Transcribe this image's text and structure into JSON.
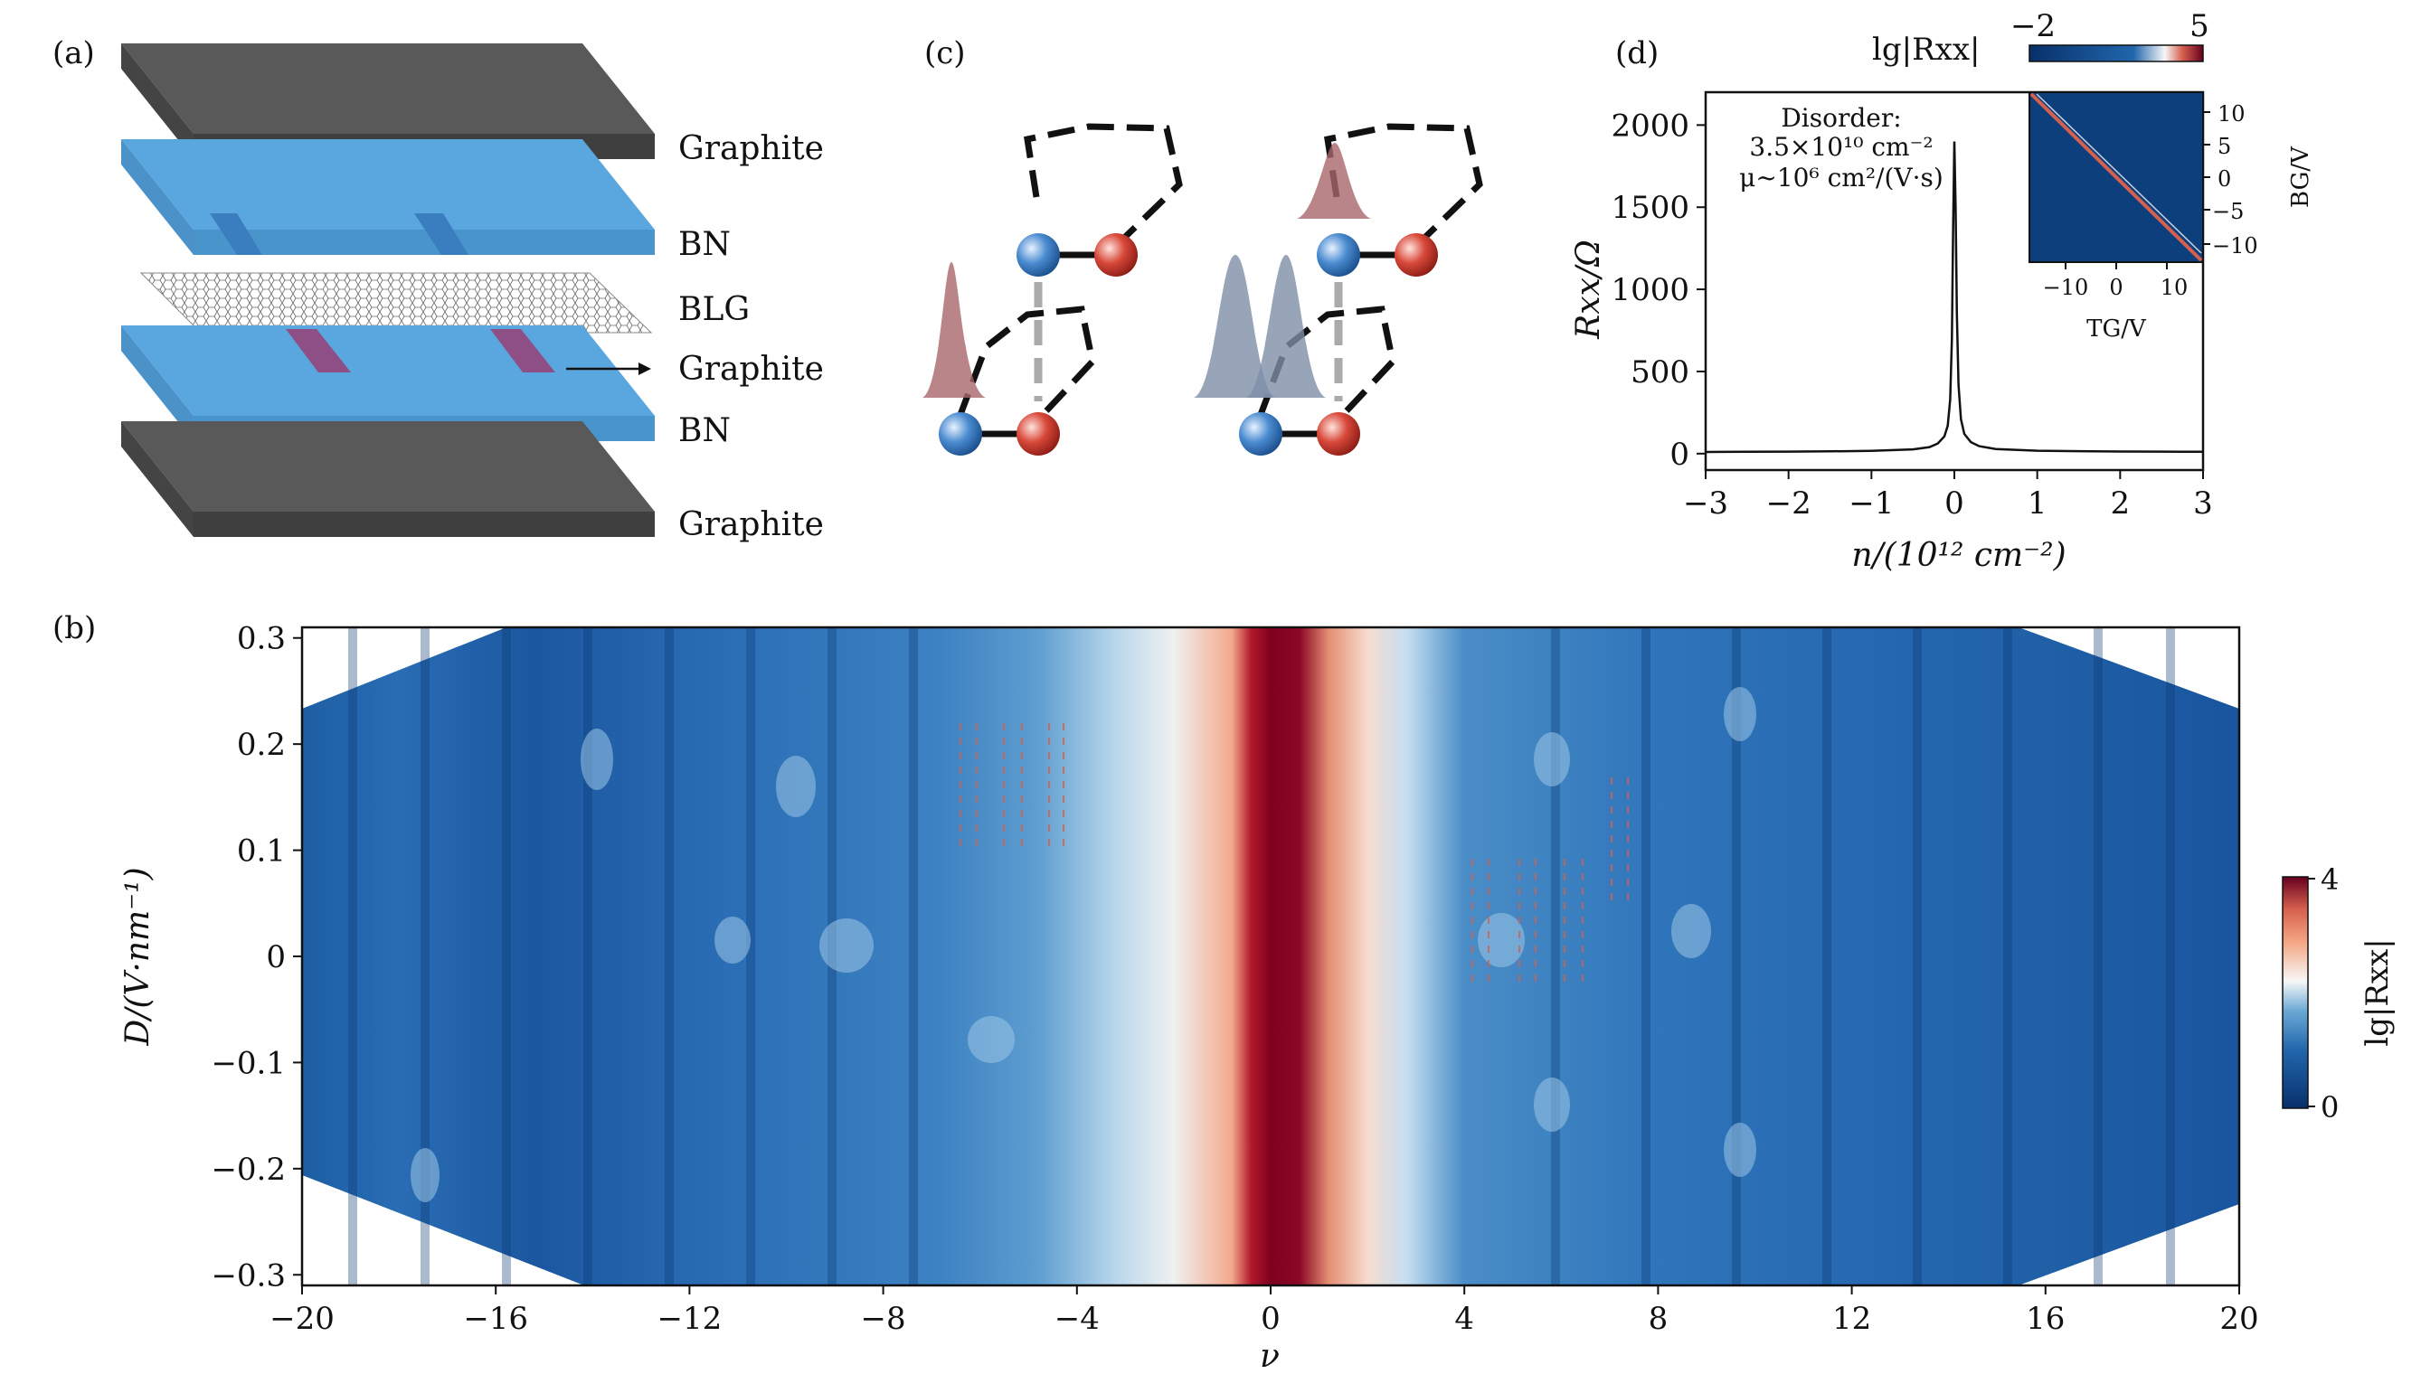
{
  "panels": {
    "a": {
      "label": "(a)",
      "layers": [
        "Graphite",
        "BN",
        "BLG",
        "Graphite",
        "BN",
        "Graphite"
      ],
      "colors": {
        "graphite": "#5a5a5a",
        "bn": "#4f9fdc",
        "blg": "#9a9a9a",
        "contact": "#8e4e86"
      }
    },
    "c": {
      "label": "(c)",
      "colors": {
        "blue_atom": "#3a7cc3",
        "red_atom": "#c23a30",
        "wave_red": "#a9676a",
        "wave_blue": "#7e8ea8"
      }
    },
    "d": {
      "label": "(d)",
      "annotation": {
        "line1": "Disorder:",
        "line2": "3.5×10¹⁰ cm⁻²",
        "line3": "μ~10⁶ cm²/(V·s)"
      },
      "inset": {
        "xlabel": "TG/V",
        "ylabel": "BG/V",
        "xticks": [
          "−10",
          "0",
          "10"
        ],
        "yticks": [
          "10",
          "5",
          "0",
          "−5",
          "−10"
        ],
        "colorbar_label": "lg|Rxx|",
        "colorbar_ticks": [
          "−2",
          "5"
        ]
      }
    },
    "b": {
      "label": "(b)",
      "colorbar_label": "lg|Rxx|",
      "colorbar_ticks": [
        "4",
        "0"
      ]
    }
  },
  "chart_data": [
    {
      "type": "line",
      "panel": "d",
      "title": "",
      "xlabel": "n/(10¹² cm⁻²)",
      "ylabel": "Rxx/Ω",
      "xlim": [
        -3,
        3
      ],
      "ylim": [
        -100,
        2200
      ],
      "xticks": [
        -3,
        -2,
        -1,
        0,
        1,
        2,
        3
      ],
      "xtick_labels": [
        "−3",
        "−2",
        "−1",
        "0",
        "1",
        "2",
        "3"
      ],
      "yticks": [
        0,
        500,
        1000,
        1500,
        2000
      ],
      "ytick_labels": [
        "0",
        "500",
        "1000",
        "1500",
        "2000"
      ],
      "series": [
        {
          "name": "Rxx",
          "x": [
            -3,
            -2.5,
            -2,
            -1.5,
            -1,
            -0.5,
            -0.3,
            -0.2,
            -0.12,
            -0.08,
            -0.05,
            -0.03,
            -0.015,
            0,
            0.015,
            0.03,
            0.05,
            0.08,
            0.12,
            0.2,
            0.3,
            0.5,
            1,
            1.5,
            2,
            2.5,
            3
          ],
          "y": [
            10,
            11,
            12,
            14,
            17,
            26,
            40,
            62,
            105,
            170,
            330,
            700,
            1350,
            1900,
            1500,
            850,
            420,
            210,
            120,
            70,
            45,
            28,
            18,
            15,
            13,
            12,
            11
          ]
        }
      ]
    },
    {
      "type": "heatmap",
      "panel": "b",
      "title": "",
      "xlabel": "ν",
      "ylabel": "D/(V·nm⁻¹)",
      "xlim": [
        -20,
        20
      ],
      "ylim": [
        -0.31,
        0.31
      ],
      "xticks": [
        -20,
        -16,
        -12,
        -8,
        -4,
        0,
        4,
        8,
        12,
        16,
        20
      ],
      "xtick_labels": [
        "−20",
        "−16",
        "−12",
        "−8",
        "−4",
        "0",
        "4",
        "8",
        "12",
        "16",
        "20"
      ],
      "yticks": [
        0.3,
        0.2,
        0.1,
        0,
        -0.1,
        -0.2,
        -0.3
      ],
      "ytick_labels": [
        "0.3",
        "0.2",
        "0.1",
        "0",
        "−0.1",
        "−0.2",
        "−0.3"
      ],
      "color_range": [
        0,
        4
      ],
      "colormap": [
        "#08306b",
        "#1f63a8",
        "#6aa8d4",
        "#f7f7f7",
        "#f4a582",
        "#d6604d",
        "#67001f"
      ]
    }
  ]
}
